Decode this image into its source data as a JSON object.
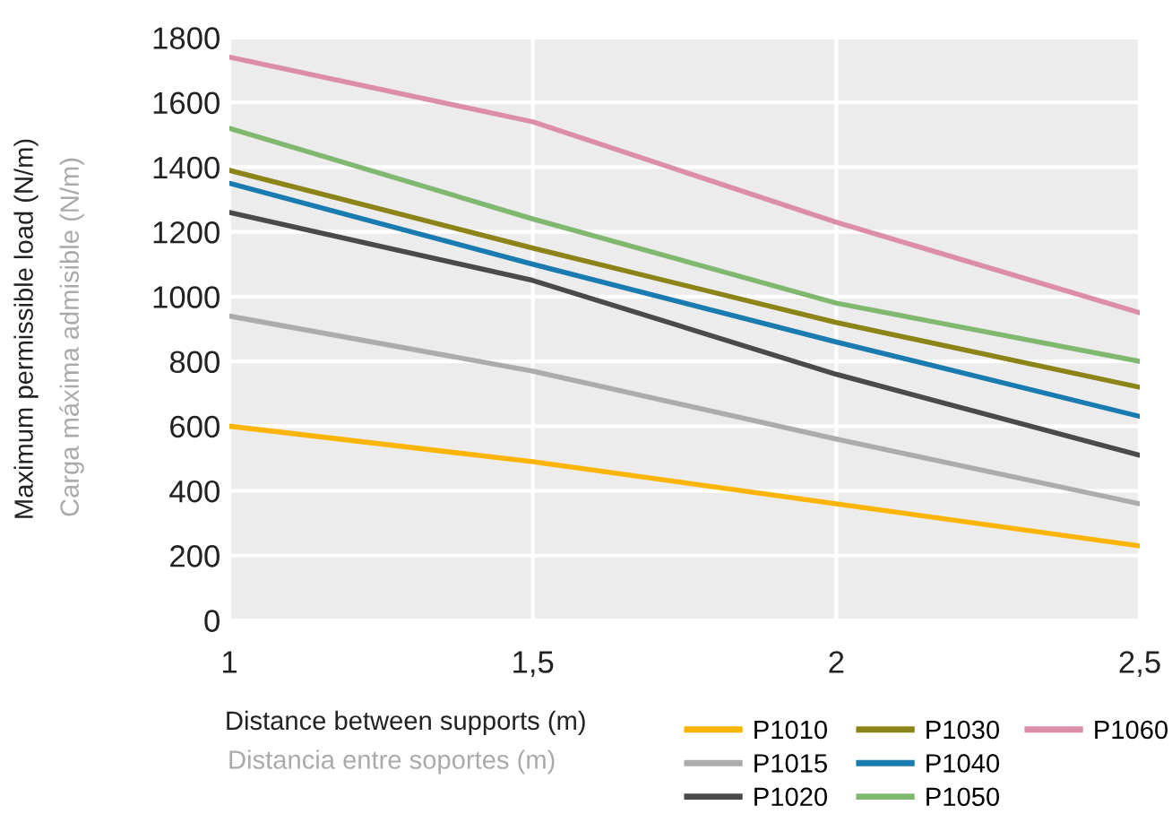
{
  "chart_data": {
    "type": "line",
    "xlabel": "Distance between supports (m)",
    "ylabel": "Maximum permissible load (N/m)",
    "annotations": [
      "Distancia entre soportes (m)",
      "Carga máxima admisible (N/m)"
    ],
    "x": [
      1,
      1.5,
      2,
      2.5
    ],
    "xlim": [
      1,
      2.5
    ],
    "xticks": [
      1,
      {
        "value": 1.5,
        "label": "1,5"
      },
      2,
      {
        "value": 2.5,
        "label": "2,5"
      }
    ],
    "ylim": [
      0,
      1800
    ],
    "yticks": [
      0,
      200,
      400,
      600,
      800,
      1000,
      1200,
      1400,
      1600,
      1800
    ],
    "grid": true,
    "legend": "bottom right",
    "marker": "none",
    "line_style": "solid",
    "series": [
      {
        "name": "P1010",
        "color": "#fbb400",
        "values": [
          600,
          490,
          360,
          230
        ]
      },
      {
        "name": "P1015",
        "color": "#acacac",
        "values": [
          940,
          770,
          560,
          360
        ]
      },
      {
        "name": "P1020",
        "color": "#4a4a4a",
        "values": [
          1260,
          1050,
          760,
          510
        ]
      },
      {
        "name": "P1030",
        "color": "#8c8419",
        "values": [
          1390,
          1150,
          920,
          720
        ]
      },
      {
        "name": "P1040",
        "color": "#1a7bb0",
        "values": [
          1350,
          1100,
          860,
          630
        ]
      },
      {
        "name": "P1050",
        "color": "#80b870",
        "values": [
          1520,
          1240,
          980,
          800
        ]
      },
      {
        "name": "P1060",
        "color": "#dc8ea8",
        "values": [
          1740,
          1540,
          1230,
          950
        ]
      }
    ]
  }
}
